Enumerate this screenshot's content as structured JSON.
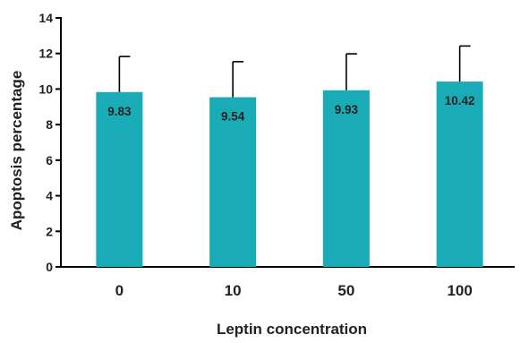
{
  "chart_data": {
    "type": "bar",
    "xlabel": "Leptin concentration",
    "ylabel": "Apoptosis percentage",
    "categories": [
      "0",
      "10",
      "50",
      "100"
    ],
    "values": [
      9.83,
      9.54,
      9.93,
      10.42
    ],
    "errors": [
      2.0,
      2.0,
      2.05,
      2.0
    ],
    "data_labels": [
      "9.83",
      "9.54",
      "9.93",
      "10.42"
    ],
    "ylim": [
      0,
      14
    ],
    "yticks": [
      0,
      2,
      4,
      6,
      8,
      10,
      12,
      14
    ],
    "ytick_labels": [
      "0",
      "2",
      "4",
      "6",
      "8",
      "10",
      "12",
      "14"
    ],
    "bar_color": "#1aacb6",
    "grid": false,
    "legend": "none"
  }
}
